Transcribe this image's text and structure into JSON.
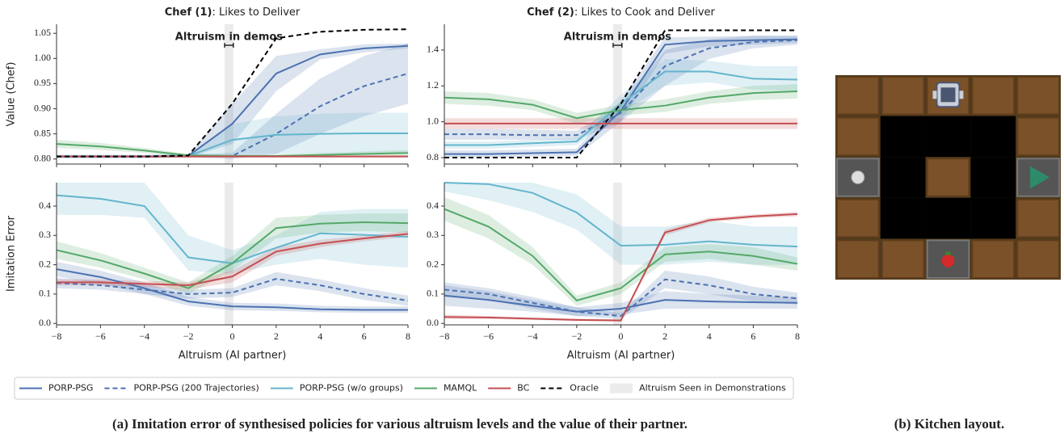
{
  "chart_data": [
    {
      "type": "line",
      "title": {
        "bold": "Chef (1)",
        "rest": ": Likes to Deliver"
      },
      "ylabel": "Value (Chef)",
      "annotation": "Altruism in demos",
      "x": [
        -8,
        -6,
        -4,
        -2,
        0,
        2,
        4,
        6,
        8
      ],
      "xlim": [
        -8,
        8
      ],
      "xticks": [
        {
          "value": -8,
          "label": "−8"
        },
        {
          "value": -6,
          "label": "−6"
        },
        {
          "value": -4,
          "label": "−4"
        },
        {
          "value": -2,
          "label": "−2"
        },
        0,
        2,
        4,
        6,
        8
      ],
      "show_xtick_labels": false,
      "ylim": [
        0.79,
        1.068
      ],
      "yticks": [
        {
          "value": 0.8,
          "label": "0.80"
        },
        0.85,
        {
          "value": 0.9,
          "label": "0.90"
        },
        0.95,
        {
          "value": 1.0,
          "label": "1.00"
        },
        1.05
      ],
      "demo_band": [
        -0.35,
        0.05
      ],
      "series": [
        {
          "name": "PORP-PSG",
          "color": "#4c72b0",
          "dashed": false,
          "values": [
            0.805,
            0.805,
            0.805,
            0.806,
            0.87,
            0.97,
            1.008,
            1.02,
            1.025
          ],
          "lower": [
            0.802,
            0.802,
            0.802,
            0.803,
            0.83,
            0.935,
            0.998,
            1.012,
            1.02
          ],
          "upper": [
            0.808,
            0.808,
            0.808,
            0.809,
            0.91,
            1.005,
            1.018,
            1.028,
            1.03
          ]
        },
        {
          "name": "PORP-PSG (200 Trajectories)",
          "color": "#4c72b0",
          "dashed": true,
          "values": [
            0.805,
            0.805,
            0.805,
            0.806,
            0.806,
            0.85,
            0.905,
            0.945,
            0.97
          ],
          "lower": [
            0.802,
            0.802,
            0.802,
            0.803,
            0.8,
            0.81,
            0.85,
            0.885,
            0.91
          ],
          "upper": [
            0.808,
            0.808,
            0.808,
            0.809,
            0.812,
            0.89,
            0.96,
            1.005,
            1.03
          ]
        },
        {
          "name": "PORP-PSG (w/o groups)",
          "color": "#64b5cd",
          "dashed": false,
          "values": [
            0.805,
            0.805,
            0.805,
            0.806,
            0.838,
            0.848,
            0.85,
            0.851,
            0.851
          ],
          "lower": [
            0.802,
            0.802,
            0.802,
            0.803,
            0.81,
            0.81,
            0.81,
            0.81,
            0.81
          ],
          "upper": [
            0.808,
            0.808,
            0.808,
            0.81,
            0.87,
            0.885,
            0.89,
            0.892,
            0.892
          ]
        },
        {
          "name": "MAMQL",
          "color": "#55a868",
          "dashed": false,
          "values": [
            0.83,
            0.825,
            0.817,
            0.807,
            0.806,
            0.806,
            0.808,
            0.81,
            0.812
          ],
          "lower": [
            0.822,
            0.818,
            0.812,
            0.804,
            0.803,
            0.803,
            0.804,
            0.805,
            0.806
          ],
          "upper": [
            0.838,
            0.832,
            0.822,
            0.81,
            0.809,
            0.809,
            0.812,
            0.815,
            0.818
          ]
        },
        {
          "name": "BC",
          "color": "#c44e52",
          "dashed": false,
          "values": [
            0.805,
            0.805,
            0.805,
            0.805,
            0.805,
            0.805,
            0.805,
            0.805,
            0.805
          ],
          "lower": [
            0.803,
            0.803,
            0.803,
            0.803,
            0.803,
            0.803,
            0.803,
            0.803,
            0.803
          ],
          "upper": [
            0.807,
            0.807,
            0.807,
            0.807,
            0.807,
            0.807,
            0.807,
            0.807,
            0.807
          ]
        },
        {
          "name": "Oracle",
          "color": "#000000",
          "dashed": true,
          "values": [
            0.805,
            0.805,
            0.805,
            0.807,
            0.91,
            1.04,
            1.053,
            1.057,
            1.058
          ]
        }
      ]
    },
    {
      "type": "line",
      "title": {
        "bold": "Chef (2)",
        "rest": ": Likes to Cook and Deliver"
      },
      "annotation": "Altruism in demos",
      "x": [
        -8,
        -6,
        -4,
        -2,
        0,
        2,
        4,
        6,
        8
      ],
      "xlim": [
        -8,
        8
      ],
      "xticks": [
        {
          "value": -8,
          "label": "−8"
        },
        {
          "value": -6,
          "label": "−6"
        },
        {
          "value": -4,
          "label": "−4"
        },
        {
          "value": -2,
          "label": "−2"
        },
        0,
        2,
        4,
        6,
        8
      ],
      "show_xtick_labels": false,
      "ylim": [
        0.764,
        1.544
      ],
      "yticks": [
        0.8,
        {
          "value": 1.0,
          "label": "1.0"
        },
        1.2,
        1.4
      ],
      "demo_band": [
        -0.35,
        0.05
      ],
      "demo_band_label": "Altruism Seen in Demonstrations",
      "series": [
        {
          "name": "PORP-PSG",
          "color": "#4c72b0",
          "dashed": false,
          "values": [
            0.82,
            0.82,
            0.825,
            0.83,
            1.06,
            1.43,
            1.45,
            1.455,
            1.46
          ],
          "lower": [
            0.8,
            0.8,
            0.805,
            0.81,
            1.0,
            1.38,
            1.42,
            1.43,
            1.44
          ],
          "upper": [
            0.84,
            0.84,
            0.845,
            0.85,
            1.12,
            1.47,
            1.475,
            1.48,
            1.48
          ]
        },
        {
          "name": "PORP-PSG (200 Trajectories)",
          "color": "#4c72b0",
          "dashed": true,
          "values": [
            0.93,
            0.93,
            0.925,
            0.925,
            1.05,
            1.31,
            1.41,
            1.445,
            1.455
          ],
          "lower": [
            0.9,
            0.9,
            0.9,
            0.9,
            1.0,
            1.2,
            1.35,
            1.41,
            1.43
          ],
          "upper": [
            0.96,
            0.96,
            0.955,
            0.95,
            1.1,
            1.4,
            1.46,
            1.48,
            1.48
          ]
        },
        {
          "name": "PORP-PSG (w/o groups)",
          "color": "#64b5cd",
          "dashed": false,
          "values": [
            0.87,
            0.87,
            0.88,
            0.89,
            1.1,
            1.28,
            1.28,
            1.24,
            1.235
          ],
          "lower": [
            0.85,
            0.85,
            0.86,
            0.87,
            1.05,
            1.2,
            1.22,
            1.18,
            1.17
          ],
          "upper": [
            0.89,
            0.89,
            0.9,
            0.91,
            1.15,
            1.35,
            1.34,
            1.31,
            1.31
          ]
        },
        {
          "name": "MAMQL",
          "color": "#55a868",
          "dashed": false,
          "values": [
            1.135,
            1.125,
            1.095,
            1.02,
            1.065,
            1.09,
            1.135,
            1.16,
            1.17
          ],
          "lower": [
            1.1,
            1.09,
            1.065,
            0.99,
            1.035,
            1.055,
            1.1,
            1.12,
            1.13
          ],
          "upper": [
            1.17,
            1.16,
            1.125,
            1.05,
            1.095,
            1.125,
            1.17,
            1.2,
            1.21
          ]
        },
        {
          "name": "BC",
          "color": "#c44e52",
          "dashed": false,
          "values": [
            0.99,
            0.99,
            0.99,
            0.99,
            0.99,
            0.99,
            0.99,
            0.99,
            0.99
          ],
          "lower": [
            0.96,
            0.96,
            0.96,
            0.96,
            0.96,
            0.96,
            0.96,
            0.96,
            0.96
          ],
          "upper": [
            1.02,
            1.02,
            1.02,
            1.02,
            1.02,
            1.02,
            1.02,
            1.02,
            1.02
          ]
        },
        {
          "name": "Oracle",
          "color": "#000000",
          "dashed": true,
          "values": [
            0.8,
            0.8,
            0.8,
            0.8,
            1.1,
            1.51,
            1.51,
            1.51,
            1.51
          ]
        }
      ]
    },
    {
      "type": "line",
      "ylabel": "Imitation Error",
      "xlabel": "Altruism (AI partner)",
      "x": [
        -8,
        -6,
        -4,
        -2,
        0,
        2,
        4,
        6,
        8
      ],
      "xlim": [
        -8,
        8
      ],
      "xticks": [
        {
          "value": -8,
          "label": "−8"
        },
        {
          "value": -6,
          "label": "−6"
        },
        {
          "value": -4,
          "label": "−4"
        },
        {
          "value": -2,
          "label": "−2"
        },
        0,
        2,
        4,
        6,
        8
      ],
      "show_xtick_labels": true,
      "ylim": [
        -0.005,
        0.48
      ],
      "yticks": [
        {
          "value": 0,
          "label": "0.0"
        },
        0.1,
        0.2,
        0.3,
        0.4
      ],
      "demo_band": [
        -0.35,
        0.05
      ],
      "series": [
        {
          "name": "PORP-PSG",
          "color": "#4c72b0",
          "dashed": false,
          "values": [
            0.185,
            0.158,
            0.12,
            0.075,
            0.058,
            0.055,
            0.048,
            0.046,
            0.046
          ],
          "lower": [
            0.16,
            0.135,
            0.1,
            0.06,
            0.045,
            0.043,
            0.038,
            0.036,
            0.036
          ],
          "upper": [
            0.21,
            0.18,
            0.14,
            0.09,
            0.07,
            0.068,
            0.06,
            0.058,
            0.058
          ]
        },
        {
          "name": "PORP-PSG (200 Trajectories)",
          "color": "#4c72b0",
          "dashed": true,
          "values": [
            0.138,
            0.13,
            0.115,
            0.1,
            0.105,
            0.152,
            0.13,
            0.1,
            0.078
          ],
          "lower": [
            0.12,
            0.115,
            0.1,
            0.085,
            0.09,
            0.13,
            0.11,
            0.08,
            0.06
          ],
          "upper": [
            0.155,
            0.145,
            0.13,
            0.115,
            0.12,
            0.175,
            0.15,
            0.12,
            0.095
          ]
        },
        {
          "name": "PORP-PSG (w/o groups)",
          "color": "#64b5cd",
          "dashed": false,
          "values": [
            0.437,
            0.425,
            0.4,
            0.225,
            0.205,
            0.258,
            0.307,
            0.302,
            0.295
          ],
          "lower": [
            0.37,
            0.37,
            0.36,
            0.18,
            0.17,
            0.2,
            0.22,
            0.2,
            0.19
          ],
          "upper": [
            0.48,
            0.48,
            0.48,
            0.3,
            0.25,
            0.3,
            0.38,
            0.39,
            0.39
          ]
        },
        {
          "name": "MAMQL",
          "color": "#55a868",
          "dashed": false,
          "values": [
            0.25,
            0.215,
            0.17,
            0.12,
            0.205,
            0.325,
            0.34,
            0.345,
            0.342
          ],
          "lower": [
            0.22,
            0.19,
            0.15,
            0.1,
            0.18,
            0.29,
            0.31,
            0.315,
            0.31
          ],
          "upper": [
            0.28,
            0.24,
            0.19,
            0.14,
            0.23,
            0.36,
            0.37,
            0.375,
            0.375
          ]
        },
        {
          "name": "BC",
          "color": "#c44e52",
          "dashed": false,
          "values": [
            0.14,
            0.14,
            0.135,
            0.13,
            0.16,
            0.245,
            0.272,
            0.29,
            0.305
          ],
          "lower": [
            0.13,
            0.13,
            0.125,
            0.115,
            0.14,
            0.23,
            0.26,
            0.28,
            0.295
          ],
          "upper": [
            0.15,
            0.15,
            0.145,
            0.14,
            0.18,
            0.26,
            0.285,
            0.3,
            0.315
          ]
        }
      ]
    },
    {
      "type": "line",
      "xlabel": "Altruism (AI partner)",
      "x": [
        -8,
        -6,
        -4,
        -2,
        0,
        2,
        4,
        6,
        8
      ],
      "xlim": [
        -8,
        8
      ],
      "xticks": [
        {
          "value": -8,
          "label": "−8"
        },
        {
          "value": -6,
          "label": "−6"
        },
        {
          "value": -4,
          "label": "−4"
        },
        {
          "value": -2,
          "label": "−2"
        },
        0,
        2,
        4,
        6,
        8
      ],
      "show_xtick_labels": true,
      "ylim": [
        -0.005,
        0.48
      ],
      "yticks": [
        {
          "value": 0,
          "label": "0.0"
        },
        0.1,
        0.2,
        0.3,
        0.4
      ],
      "demo_band": [
        -0.35,
        0.05
      ],
      "series": [
        {
          "name": "PORP-PSG",
          "color": "#4c72b0",
          "dashed": false,
          "values": [
            0.095,
            0.08,
            0.06,
            0.04,
            0.05,
            0.08,
            0.075,
            0.072,
            0.07
          ],
          "lower": [
            0.06,
            0.05,
            0.04,
            0.025,
            0.03,
            0.05,
            0.05,
            0.05,
            0.05
          ],
          "upper": [
            0.13,
            0.11,
            0.08,
            0.055,
            0.07,
            0.11,
            0.1,
            0.095,
            0.09
          ]
        },
        {
          "name": "PORP-PSG (200 Trajectories)",
          "color": "#4c72b0",
          "dashed": true,
          "values": [
            0.115,
            0.1,
            0.07,
            0.04,
            0.025,
            0.15,
            0.13,
            0.1,
            0.085
          ],
          "lower": [
            0.09,
            0.08,
            0.05,
            0.025,
            0.015,
            0.12,
            0.1,
            0.075,
            0.065
          ],
          "upper": [
            0.14,
            0.12,
            0.09,
            0.055,
            0.035,
            0.18,
            0.16,
            0.125,
            0.105
          ]
        },
        {
          "name": "PORP-PSG (w/o groups)",
          "color": "#64b5cd",
          "dashed": false,
          "values": [
            0.48,
            0.475,
            0.445,
            0.378,
            0.265,
            0.268,
            0.28,
            0.268,
            0.262
          ],
          "lower": [
            0.45,
            0.42,
            0.38,
            0.32,
            0.2,
            0.2,
            0.21,
            0.2,
            0.2
          ],
          "upper": [
            0.48,
            0.48,
            0.48,
            0.44,
            0.33,
            0.33,
            0.35,
            0.33,
            0.33
          ]
        },
        {
          "name": "MAMQL",
          "color": "#55a868",
          "dashed": false,
          "values": [
            0.39,
            0.33,
            0.23,
            0.078,
            0.12,
            0.235,
            0.245,
            0.23,
            0.203
          ],
          "lower": [
            0.35,
            0.29,
            0.2,
            0.06,
            0.1,
            0.21,
            0.22,
            0.2,
            0.18
          ],
          "upper": [
            0.43,
            0.37,
            0.26,
            0.095,
            0.14,
            0.26,
            0.27,
            0.26,
            0.225
          ]
        },
        {
          "name": "BC",
          "color": "#c44e52",
          "dashed": false,
          "values": [
            0.022,
            0.02,
            0.016,
            0.012,
            0.01,
            0.31,
            0.352,
            0.365,
            0.373
          ],
          "lower": [
            0.015,
            0.015,
            0.012,
            0.008,
            0.006,
            0.3,
            0.345,
            0.358,
            0.365
          ],
          "upper": [
            0.03,
            0.025,
            0.02,
            0.016,
            0.014,
            0.32,
            0.36,
            0.372,
            0.38
          ]
        }
      ]
    }
  ],
  "caption": "(a) Imitation error of synthesised policies for various altruism levels and the value of their partner.",
  "kitchen_caption": "(b) Kitchen layout."
}
